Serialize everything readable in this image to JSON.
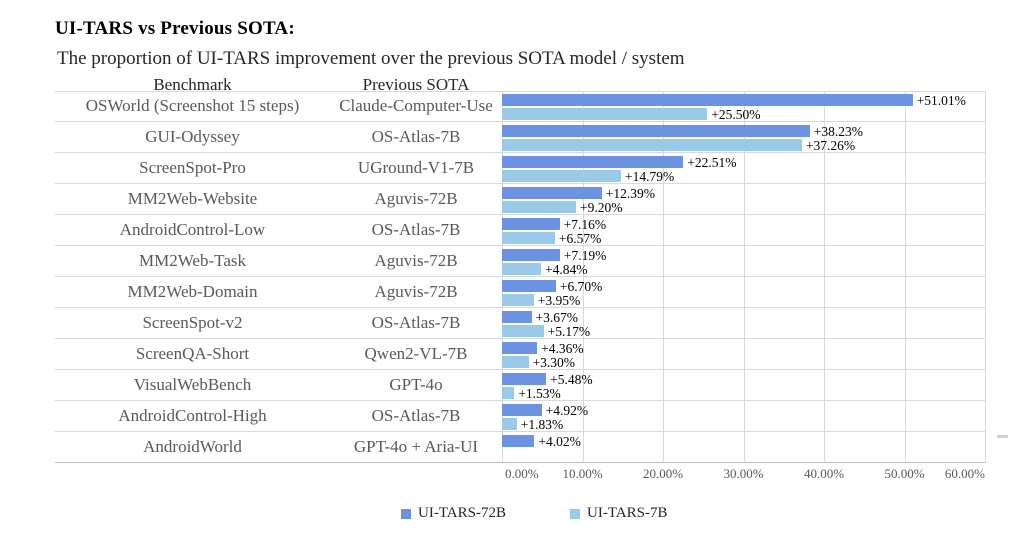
{
  "title": "UI-TARS vs Previous SOTA:",
  "subtitle": "The proportion of UI-TARS improvement over the previous SOTA model / system",
  "table": {
    "benchmark_header": "Benchmark",
    "previous_sota_header": "Previous SOTA"
  },
  "colors": {
    "ui_tars_72b": "#6B93E1",
    "ui_tars_7b": "#9BC9E8",
    "gridline": "#d9d9d9",
    "axis_line": "#bfbfbf",
    "row_text": "#595959",
    "header_text": "#262626"
  },
  "chart_data": {
    "type": "bar",
    "orientation": "horizontal",
    "title": "UI-TARS vs Previous SOTA:",
    "subtitle": "The proportion of UI-TARS improvement over the previous SOTA model / system",
    "xlabel": "",
    "ylabel": "",
    "x_axis": {
      "min": 0,
      "max": 60,
      "ticks": [
        "0.00%",
        "10.00%",
        "20.00%",
        "30.00%",
        "40.00%",
        "50.00%",
        "60.00%"
      ],
      "grid": true
    },
    "legend_position": "bottom",
    "series_names": [
      "UI-TARS-72B",
      "UI-TARS-7B"
    ],
    "legend": [
      {
        "label": "UI-TARS-72B",
        "color": "#6B93E1"
      },
      {
        "label": "UI-TARS-7B",
        "color": "#9BC9E8"
      }
    ],
    "rows": [
      {
        "benchmark": "OSWorld (Screenshot 15 steps)",
        "previous_sota": "Claude-Computer-Use",
        "ui_tars_72b": 51.01,
        "ui_tars_7b": 25.5,
        "label_72b": "+51.01%",
        "label_7b": "+25.50%"
      },
      {
        "benchmark": "GUI-Odyssey",
        "previous_sota": "OS-Atlas-7B",
        "ui_tars_72b": 38.23,
        "ui_tars_7b": 37.26,
        "label_72b": "+38.23%",
        "label_7b": "+37.26%"
      },
      {
        "benchmark": "ScreenSpot-Pro",
        "previous_sota": "UGround-V1-7B",
        "ui_tars_72b": 22.51,
        "ui_tars_7b": 14.79,
        "label_72b": "+22.51%",
        "label_7b": "+14.79%"
      },
      {
        "benchmark": "MM2Web-Website",
        "previous_sota": "Aguvis-72B",
        "ui_tars_72b": 12.39,
        "ui_tars_7b": 9.2,
        "label_72b": "+12.39%",
        "label_7b": "+9.20%"
      },
      {
        "benchmark": "AndroidControl-Low",
        "previous_sota": "OS-Atlas-7B",
        "ui_tars_72b": 7.16,
        "ui_tars_7b": 6.57,
        "label_72b": "+7.16%",
        "label_7b": "+6.57%"
      },
      {
        "benchmark": "MM2Web-Task",
        "previous_sota": "Aguvis-72B",
        "ui_tars_72b": 7.19,
        "ui_tars_7b": 4.84,
        "label_72b": "+7.19%",
        "label_7b": "+4.84%"
      },
      {
        "benchmark": "MM2Web-Domain",
        "previous_sota": "Aguvis-72B",
        "ui_tars_72b": 6.7,
        "ui_tars_7b": 3.95,
        "label_72b": "+6.70%",
        "label_7b": "+3.95%"
      },
      {
        "benchmark": "ScreenSpot-v2",
        "previous_sota": "OS-Atlas-7B",
        "ui_tars_72b": 3.67,
        "ui_tars_7b": 5.17,
        "label_72b": "+3.67%",
        "label_7b": "+5.17%"
      },
      {
        "benchmark": "ScreenQA-Short",
        "previous_sota": "Qwen2-VL-7B",
        "ui_tars_72b": 4.36,
        "ui_tars_7b": 3.3,
        "label_72b": "+4.36%",
        "label_7b": "+3.30%"
      },
      {
        "benchmark": "VisualWebBench",
        "previous_sota": "GPT-4o",
        "ui_tars_72b": 5.48,
        "ui_tars_7b": 1.53,
        "label_72b": "+5.48%",
        "label_7b": "+1.53%"
      },
      {
        "benchmark": "AndroidControl-High",
        "previous_sota": "OS-Atlas-7B",
        "ui_tars_72b": 4.92,
        "ui_tars_7b": 1.83,
        "label_72b": "+4.92%",
        "label_7b": "+1.83%"
      },
      {
        "benchmark": "AndroidWorld",
        "previous_sota": "GPT-4o + Aria-UI",
        "ui_tars_72b": 4.02,
        "ui_tars_7b": null,
        "label_72b": "+4.02%",
        "label_7b": null
      }
    ]
  }
}
